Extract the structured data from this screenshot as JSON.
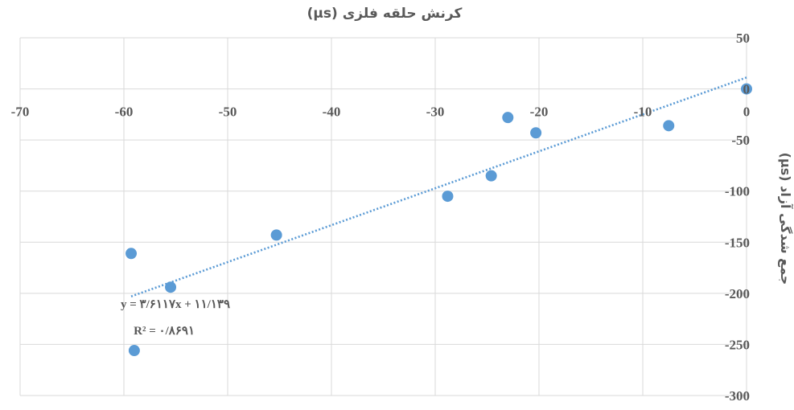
{
  "chart_data": {
    "type": "scatter",
    "title": "کرنش حلقه فلزی (µs)",
    "ylabel": "جمع شدگی آزاد (µs)",
    "xlim": [
      -70,
      0
    ],
    "ylim": [
      -300,
      50
    ],
    "xticks": [
      -70,
      -60,
      -50,
      -40,
      -30,
      -20,
      -10,
      0
    ],
    "yticks": [
      50,
      0,
      -50,
      -100,
      -150,
      -200,
      -250,
      -300
    ],
    "xtick_labels": [
      "-70",
      "-60",
      "-50",
      "-40",
      "-30",
      "-20",
      "-10",
      "0"
    ],
    "ytick_labels": [
      "50",
      "0",
      "-50",
      "-100",
      "-150",
      "-200",
      "-250",
      "-300"
    ],
    "grid": true,
    "points": [
      {
        "x": 0,
        "y": 0
      },
      {
        "x": -7.5,
        "y": -36
      },
      {
        "x": -20.3,
        "y": -43
      },
      {
        "x": -23,
        "y": -28
      },
      {
        "x": -24.6,
        "y": -85
      },
      {
        "x": -28.8,
        "y": -105
      },
      {
        "x": -45.3,
        "y": -143
      },
      {
        "x": -55.5,
        "y": -194
      },
      {
        "x": -59.3,
        "y": -161
      },
      {
        "x": -59,
        "y": -256
      }
    ],
    "trendline": {
      "type": "linear",
      "slope": 3.6117,
      "intercept": 11.139,
      "x_range": [
        -59.3,
        0
      ],
      "style": "dotted"
    },
    "equation_line1": "y = ۳/۶۱۱۷x + ۱۱/۱۳۹",
    "equation_line2": "R² = ۰/۸۶۹۱",
    "colors": {
      "marker": "#5b9bd5",
      "trendline": "#5b9bd5",
      "grid": "#d9d9d9",
      "text": "#595959"
    }
  }
}
